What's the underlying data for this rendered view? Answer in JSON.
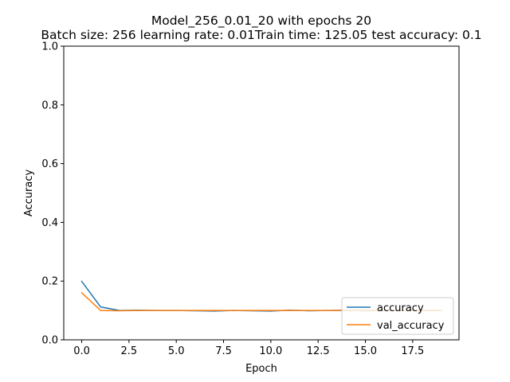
{
  "chart_data": {
    "type": "line",
    "title": "Model_256_0.01_20 with epochs 20",
    "subtitle": "Batch size: 256  learning rate: 0.01Train time: 125.05  test accuracy: 0.1",
    "xlabel": "Epoch",
    "ylabel": "Accuracy",
    "xlim": [
      -0.95,
      19.95
    ],
    "ylim": [
      0.0,
      1.0
    ],
    "xticks": [
      0.0,
      2.5,
      5.0,
      7.5,
      10.0,
      12.5,
      15.0,
      17.5
    ],
    "xtick_labels": [
      "0.0",
      "2.5",
      "5.0",
      "7.5",
      "10.0",
      "12.5",
      "15.0",
      "17.5"
    ],
    "yticks": [
      0.0,
      0.2,
      0.4,
      0.6,
      0.8,
      1.0
    ],
    "ytick_labels": [
      "0.0",
      "0.2",
      "0.4",
      "0.6",
      "0.8",
      "1.0"
    ],
    "grid": false,
    "legend_position": "lower right",
    "x": [
      0,
      1,
      2,
      3,
      4,
      5,
      6,
      7,
      8,
      9,
      10,
      11,
      12,
      13,
      14,
      15,
      16,
      17,
      18,
      19
    ],
    "series": [
      {
        "name": "accuracy",
        "color": "#1f77b4",
        "values": [
          0.199,
          0.112,
          0.1,
          0.101,
          0.1,
          0.1,
          0.099,
          0.098,
          0.1,
          0.099,
          0.098,
          0.101,
          0.099,
          0.1,
          0.101,
          0.099,
          0.1,
          0.1,
          0.1,
          0.1
        ]
      },
      {
        "name": "val_accuracy",
        "color": "#ff7f0e",
        "values": [
          0.16,
          0.1,
          0.099,
          0.1,
          0.1,
          0.1,
          0.1,
          0.1,
          0.1,
          0.1,
          0.1,
          0.1,
          0.1,
          0.1,
          0.1,
          0.1,
          0.1,
          0.1,
          0.1,
          0.1
        ]
      }
    ]
  }
}
